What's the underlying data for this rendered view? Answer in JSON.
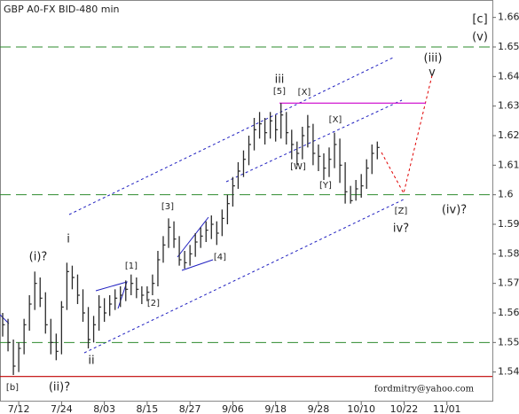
{
  "chart_data": {
    "type": "ohlc",
    "title": "GBP A0-FX BID-480 min",
    "bar_color": "#2b2b2b",
    "categories": [
      null,
      null,
      null,
      "7/12",
      null,
      null,
      null,
      null,
      null,
      null,
      null,
      "7/24",
      null,
      null,
      null,
      null,
      null,
      null,
      null,
      "8/03",
      null,
      null,
      null,
      null,
      null,
      null,
      null,
      "8/15",
      null,
      null,
      null,
      null,
      null,
      null,
      null,
      "8/27",
      null,
      null,
      null,
      null,
      null,
      null,
      null,
      "9/06",
      null,
      null,
      null,
      null,
      null,
      null,
      null,
      "9/18",
      null,
      null,
      null,
      null,
      null,
      null,
      null,
      "9/28",
      null,
      null,
      null,
      null,
      null,
      null,
      null,
      "10/10",
      null,
      null,
      null,
      null,
      null,
      null,
      null,
      "10/22",
      null,
      null,
      null,
      null,
      null,
      null,
      null,
      "11/01",
      null,
      null,
      null,
      null,
      null,
      null,
      null,
      null
    ],
    "high": [
      1.56,
      1.558,
      1.551,
      1.55,
      1.558,
      1.566,
      1.574,
      1.572,
      1.567,
      1.558,
      1.553,
      1.564,
      1.577,
      1.576,
      1.573,
      1.568,
      1.562,
      1.559,
      1.566,
      1.565,
      1.566,
      1.568,
      1.569,
      1.571,
      1.573,
      1.572,
      1.569,
      1.569,
      1.573,
      1.581,
      1.586,
      1.592,
      1.591,
      1.586,
      1.581,
      1.583,
      1.587,
      1.589,
      1.591,
      1.593,
      1.591,
      1.595,
      1.6,
      1.606,
      1.611,
      1.615,
      1.62,
      1.626,
      1.628,
      1.626,
      1.628,
      1.627,
      1.631,
      1.628,
      1.622,
      1.618,
      1.623,
      1.627,
      1.624,
      1.617,
      1.614,
      1.616,
      1.621,
      1.619,
      1.611,
      1.603,
      1.605,
      1.607,
      1.612,
      1.617,
      1.618,
      null,
      null,
      null,
      null,
      null,
      null,
      null,
      null,
      null,
      null,
      null,
      null,
      null,
      null,
      null,
      null,
      null,
      null,
      null,
      null,
      null
    ],
    "low": [
      1.552,
      1.547,
      1.539,
      1.54,
      1.546,
      1.554,
      1.561,
      1.562,
      1.553,
      1.546,
      1.544,
      1.546,
      1.561,
      1.568,
      1.563,
      1.557,
      1.548,
      1.55,
      1.554,
      1.557,
      1.559,
      1.561,
      1.562,
      1.564,
      1.566,
      1.565,
      1.563,
      1.564,
      1.566,
      1.569,
      1.577,
      1.582,
      1.582,
      1.576,
      1.575,
      1.576,
      1.579,
      1.582,
      1.584,
      1.585,
      1.583,
      1.586,
      1.59,
      1.596,
      1.602,
      1.606,
      1.61,
      1.615,
      1.619,
      1.617,
      1.619,
      1.618,
      1.619,
      1.617,
      1.612,
      1.61,
      1.612,
      1.616,
      1.61,
      1.608,
      1.605,
      1.606,
      1.609,
      1.604,
      1.597,
      1.597,
      1.598,
      1.599,
      1.602,
      1.607,
      1.612,
      null,
      null,
      null,
      null,
      null,
      null,
      null,
      null,
      null,
      null,
      null,
      null,
      null,
      null,
      null,
      null,
      null,
      null,
      null,
      null,
      null
    ],
    "close": [
      1.556,
      1.55,
      1.542,
      1.548,
      1.556,
      1.563,
      1.57,
      1.565,
      1.556,
      1.55,
      1.547,
      1.562,
      1.574,
      1.572,
      1.566,
      1.56,
      1.551,
      1.556,
      1.562,
      1.56,
      1.563,
      1.565,
      1.566,
      1.568,
      1.57,
      1.568,
      1.566,
      1.567,
      1.57,
      1.578,
      1.583,
      1.589,
      1.585,
      1.578,
      1.577,
      1.58,
      1.584,
      1.586,
      1.588,
      1.59,
      1.587,
      1.592,
      1.597,
      1.603,
      1.608,
      1.612,
      1.617,
      1.622,
      1.624,
      1.621,
      1.625,
      1.622,
      1.627,
      1.621,
      1.617,
      1.614,
      1.62,
      1.623,
      1.614,
      1.613,
      1.609,
      1.612,
      1.617,
      1.61,
      1.601,
      1.598,
      1.602,
      1.603,
      1.609,
      1.614,
      1.616,
      null,
      null,
      null,
      null,
      null,
      null,
      null,
      null,
      null,
      null,
      null,
      null,
      null,
      null,
      null,
      null,
      null,
      null,
      null,
      null,
      null
    ],
    "ylim": [
      1.53,
      1.665
    ],
    "yticks": [
      1.54,
      1.55,
      1.56,
      1.57,
      1.58,
      1.59,
      1.6,
      1.61,
      1.62,
      1.63,
      1.64,
      1.65,
      1.66
    ],
    "levels": [
      {
        "value": 1.65,
        "color": "#2e8b2e"
      },
      {
        "value": 1.6,
        "color": "#2e8b2e"
      },
      {
        "value": 1.55,
        "color": "#2e8b2e"
      },
      {
        "value": 1.5385,
        "color": "#c00000"
      },
      {
        "value": 1.631,
        "color": "#cc00cc"
      }
    ],
    "annotations": [
      {
        "text": "[c]",
        "color": "#2e8b2e"
      },
      {
        "text": "(v)",
        "color": "#1a1a6e"
      },
      {
        "text": "(iii)",
        "color": "#3a2f8a"
      },
      {
        "text": "v",
        "color": "#c00000"
      },
      {
        "text": "iii",
        "color": "#a00000"
      },
      {
        "text": "[5]",
        "color": "#2e8b2e"
      },
      {
        "text": "[X]",
        "color": "#2e8b2e"
      },
      {
        "text": "[X]",
        "color": "#2e8b2e"
      },
      {
        "text": "[W]",
        "color": "#2e8b2e"
      },
      {
        "text": "[Y]",
        "color": "#2e8b2e"
      },
      {
        "text": "[Z]",
        "color": "#2e8b2e"
      },
      {
        "text": "(iv)?",
        "color": "#1a1a6e"
      },
      {
        "text": "iv?",
        "color": "#a00000"
      },
      {
        "text": "[3]",
        "color": "#2e8b2e"
      },
      {
        "text": "[4]",
        "color": "#2e8b2e"
      },
      {
        "text": "[1]",
        "color": "#2e8b2e"
      },
      {
        "text": "[2]",
        "color": "#2e8b2e"
      },
      {
        "text": "i",
        "color": "#a00000"
      },
      {
        "text": "(i)?",
        "color": "#1a1a6e"
      },
      {
        "text": "(ii)?",
        "color": "#1a1a6e"
      },
      {
        "text": "ii",
        "color": "#a00000"
      },
      {
        "text": "[b]",
        "color": "#2e8b2e"
      },
      {
        "text": "fordmitry@yahoo.com",
        "color": "#000000"
      }
    ]
  }
}
